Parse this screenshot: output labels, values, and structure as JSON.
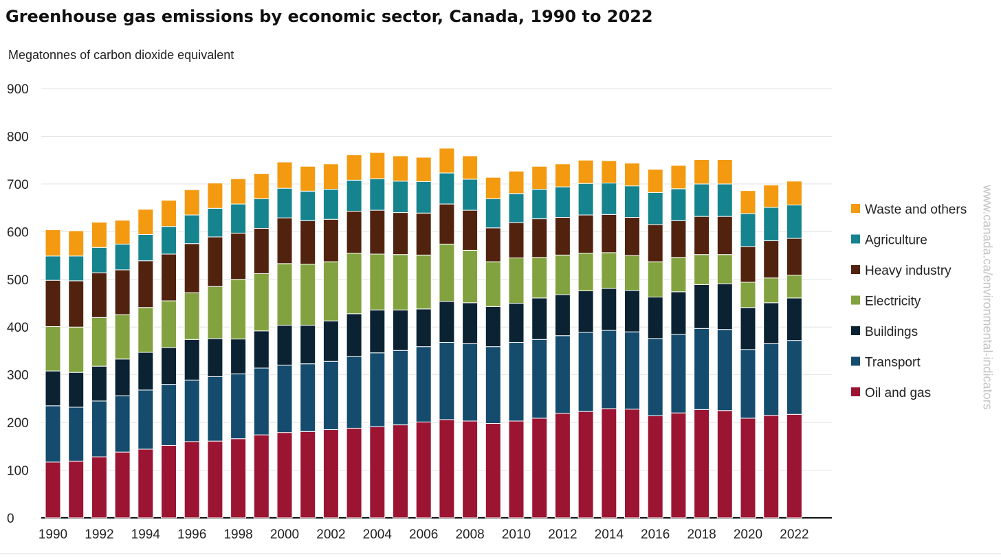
{
  "chart_data": {
    "type": "bar",
    "stacked": true,
    "title": "Greenhouse gas emissions by economic sector, Canada, 1990 to 2022",
    "ylabel": "Megatonnes of carbon dioxide equivalent",
    "source": "www.canada.ca/environmental-indicators",
    "ylim": [
      0,
      900
    ],
    "yticks": [
      0,
      100,
      200,
      300,
      400,
      500,
      600,
      700,
      800,
      900
    ],
    "grid": true,
    "legend_position": "right",
    "categories": [
      "1990",
      "1991",
      "1992",
      "1993",
      "1994",
      "1995",
      "1996",
      "1997",
      "1998",
      "1999",
      "2000",
      "2001",
      "2002",
      "2003",
      "2004",
      "2005",
      "2006",
      "2007",
      "2008",
      "2009",
      "2010",
      "2011",
      "2012",
      "2013",
      "2014",
      "2015",
      "2016",
      "2017",
      "2018",
      "2019",
      "2020",
      "2021",
      "2022"
    ],
    "xtick_labels": [
      "1990",
      "",
      "1992",
      "",
      "1994",
      "",
      "1996",
      "",
      "1998",
      "",
      "2000",
      "",
      "2002",
      "",
      "2004",
      "",
      "2006",
      "",
      "2008",
      "",
      "2010",
      "",
      "2012",
      "",
      "2014",
      "",
      "2016",
      "",
      "2018",
      "",
      "2020",
      "",
      "2022"
    ],
    "series": [
      {
        "name": "Oil and gas",
        "color": "#9b1533",
        "values": [
          117,
          119,
          128,
          138,
          144,
          152,
          160,
          161,
          166,
          174,
          179,
          181,
          185,
          188,
          191,
          195,
          201,
          206,
          203,
          198,
          203,
          209,
          219,
          223,
          229,
          228,
          214,
          220,
          227,
          225,
          209,
          215,
          217
        ]
      },
      {
        "name": "Transport",
        "color": "#154c6e",
        "values": [
          118,
          113,
          117,
          118,
          124,
          128,
          129,
          135,
          136,
          140,
          141,
          142,
          143,
          150,
          155,
          156,
          158,
          162,
          162,
          161,
          165,
          165,
          163,
          166,
          164,
          162,
          162,
          165,
          170,
          170,
          144,
          150,
          155
        ]
      },
      {
        "name": "Buildings",
        "color": "#0b2232",
        "values": [
          73,
          73,
          73,
          77,
          79,
          77,
          85,
          80,
          73,
          78,
          84,
          81,
          85,
          90,
          90,
          85,
          79,
          86,
          86,
          84,
          82,
          87,
          86,
          87,
          88,
          87,
          87,
          89,
          92,
          96,
          88,
          86,
          89
        ]
      },
      {
        "name": "Electricity",
        "color": "#82a23f",
        "values": [
          93,
          95,
          102,
          93,
          94,
          98,
          98,
          109,
          125,
          120,
          129,
          128,
          124,
          127,
          117,
          116,
          113,
          120,
          110,
          94,
          95,
          85,
          83,
          79,
          75,
          73,
          74,
          72,
          63,
          61,
          53,
          52,
          48
        ]
      },
      {
        "name": "Heavy industry",
        "color": "#51230f",
        "values": [
          97,
          97,
          94,
          94,
          98,
          98,
          103,
          104,
          97,
          95,
          96,
          91,
          89,
          88,
          92,
          88,
          88,
          84,
          84,
          71,
          74,
          81,
          79,
          80,
          80,
          80,
          78,
          77,
          80,
          80,
          75,
          78,
          77
        ]
      },
      {
        "name": "Agriculture",
        "color": "#16848f",
        "values": [
          51,
          52,
          53,
          54,
          55,
          58,
          60,
          60,
          61,
          62,
          62,
          62,
          63,
          65,
          66,
          66,
          66,
          65,
          65,
          61,
          61,
          62,
          64,
          66,
          66,
          66,
          67,
          67,
          68,
          68,
          69,
          70,
          70
        ]
      },
      {
        "name": "Waste and others",
        "color": "#f39a10",
        "values": [
          55,
          53,
          53,
          50,
          53,
          55,
          53,
          53,
          53,
          53,
          55,
          52,
          53,
          53,
          55,
          53,
          51,
          52,
          49,
          45,
          47,
          48,
          48,
          49,
          47,
          48,
          49,
          49,
          51,
          51,
          48,
          47,
          50
        ]
      }
    ]
  }
}
